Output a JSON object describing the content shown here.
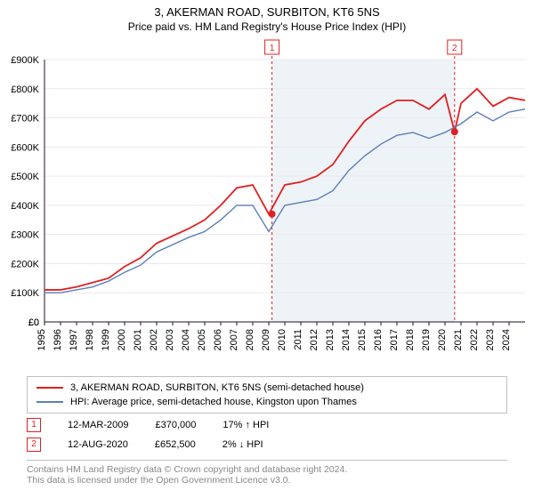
{
  "title": "3, AKERMAN ROAD, SURBITON, KT6 5NS",
  "subtitle": "Price paid vs. HM Land Registry's House Price Index (HPI)",
  "chart": {
    "type": "line",
    "background_color": "#ffffff",
    "shade_left_color": "#eef3f8",
    "shade_right_color": "#eef3f8",
    "grid_color": "#ede7ef",
    "axis_color": "#1f1226",
    "font_size_axis": 11,
    "x": {
      "min": 1995,
      "max": 2025,
      "tick_step": 1
    },
    "y": {
      "min": 0,
      "max": 900000,
      "tick_step": 100000,
      "prefix": "£",
      "unit_suffix": "K"
    },
    "series": [
      {
        "name": "3, AKERMAN ROAD, SURBITON, KT6 5NS (semi-detached house)",
        "color": "#e02020",
        "width": 1.8,
        "points": [
          [
            1995,
            110000
          ],
          [
            1996,
            110000
          ],
          [
            1997,
            120000
          ],
          [
            1998,
            135000
          ],
          [
            1999,
            150000
          ],
          [
            2000,
            190000
          ],
          [
            2001,
            220000
          ],
          [
            2002,
            270000
          ],
          [
            2003,
            295000
          ],
          [
            2004,
            320000
          ],
          [
            2005,
            350000
          ],
          [
            2006,
            400000
          ],
          [
            2007,
            460000
          ],
          [
            2008,
            470000
          ],
          [
            2009,
            370000
          ],
          [
            2010,
            470000
          ],
          [
            2011,
            480000
          ],
          [
            2012,
            500000
          ],
          [
            2013,
            540000
          ],
          [
            2014,
            620000
          ],
          [
            2015,
            690000
          ],
          [
            2016,
            730000
          ],
          [
            2017,
            760000
          ],
          [
            2018,
            760000
          ],
          [
            2019,
            730000
          ],
          [
            2020,
            780000
          ],
          [
            2020.6,
            652500
          ],
          [
            2021,
            750000
          ],
          [
            2022,
            800000
          ],
          [
            2023,
            740000
          ],
          [
            2024,
            770000
          ],
          [
            2025,
            760000
          ]
        ]
      },
      {
        "name": "HPI: Average price, semi-detached house, Kingston upon Thames",
        "color": "#5a7fb9",
        "width": 1.4,
        "points": [
          [
            1995,
            100000
          ],
          [
            1996,
            100000
          ],
          [
            1997,
            110000
          ],
          [
            1998,
            120000
          ],
          [
            1999,
            140000
          ],
          [
            2000,
            170000
          ],
          [
            2001,
            195000
          ],
          [
            2002,
            240000
          ],
          [
            2003,
            265000
          ],
          [
            2004,
            290000
          ],
          [
            2005,
            310000
          ],
          [
            2006,
            350000
          ],
          [
            2007,
            400000
          ],
          [
            2008,
            400000
          ],
          [
            2009,
            310000
          ],
          [
            2010,
            400000
          ],
          [
            2011,
            410000
          ],
          [
            2012,
            420000
          ],
          [
            2013,
            450000
          ],
          [
            2014,
            520000
          ],
          [
            2015,
            570000
          ],
          [
            2016,
            610000
          ],
          [
            2017,
            640000
          ],
          [
            2018,
            650000
          ],
          [
            2019,
            630000
          ],
          [
            2020,
            650000
          ],
          [
            2021,
            680000
          ],
          [
            2022,
            720000
          ],
          [
            2023,
            690000
          ],
          [
            2024,
            720000
          ],
          [
            2025,
            730000
          ]
        ]
      }
    ],
    "sale_markers": [
      {
        "badge": "1",
        "year": 2009.2,
        "price": 370000
      },
      {
        "badge": "2",
        "year": 2020.6,
        "price": 652500
      }
    ],
    "marker_line_color": "#e02020",
    "marker_line_dash": "3,3",
    "marker_badge_border": "#e02020",
    "marker_badge_text": "#e02020"
  },
  "legend": [
    {
      "color": "#e02020",
      "label": "3, AKERMAN ROAD, SURBITON, KT6 5NS (semi-detached house)"
    },
    {
      "color": "#5a7fb9",
      "label": "HPI: Average price, semi-detached house, Kingston upon Thames"
    }
  ],
  "marker_rows": [
    {
      "badge": "1",
      "date": "12-MAR-2009",
      "price": "£370,000",
      "delta": "17% ↑ HPI"
    },
    {
      "badge": "2",
      "date": "12-AUG-2020",
      "price": "£652,500",
      "delta": "2% ↓ HPI"
    }
  ],
  "footer": {
    "line1a": "Contains HM Land Registry data © Crown copyright and database right ",
    "line1b": "2024",
    "line1c": ".",
    "line2": "This data is licensed under the Open Government Licence v3.0."
  }
}
